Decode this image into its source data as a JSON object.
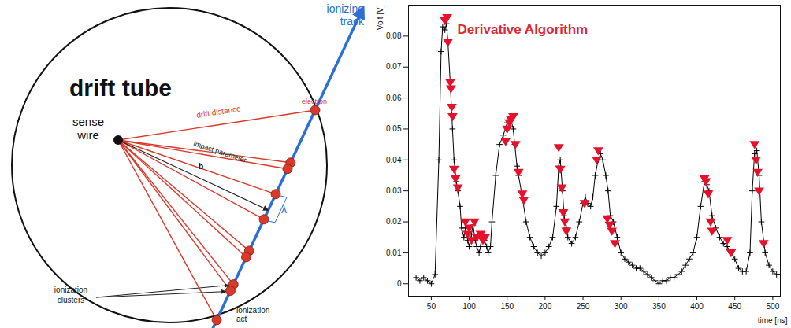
{
  "diagram": {
    "title": "drift tube",
    "labels": {
      "wire": "sense wire",
      "track": "ionizing track",
      "electron": "electron",
      "drift": "drift distance",
      "impact": "impact parameter",
      "impact_symbol": "b",
      "spacing": "λ",
      "clusters": "ionization clusters",
      "act": "ionization act"
    }
  },
  "chart_data": {
    "type": "line",
    "title": "Derivative Algorithm",
    "x_label": "time [ns]",
    "y_label": "Volt [V]",
    "xlim": [
      20,
      510
    ],
    "xticks": [
      50,
      100,
      150,
      200,
      250,
      300,
      350,
      400,
      450,
      500
    ],
    "ylim": [
      -0.004,
      0.09
    ],
    "yticks": [
      0,
      0.01,
      0.02,
      0.03,
      0.04,
      0.05,
      0.06,
      0.07,
      0.08
    ],
    "grid": false,
    "x": [
      30,
      35,
      40,
      45,
      50,
      55,
      60,
      63,
      65,
      68,
      70,
      72,
      75,
      78,
      80,
      83,
      85,
      88,
      90,
      93,
      95,
      98,
      100,
      103,
      105,
      108,
      110,
      113,
      115,
      118,
      120,
      123,
      125,
      128,
      130,
      135,
      140,
      145,
      150,
      155,
      158,
      160,
      163,
      165,
      170,
      175,
      180,
      185,
      190,
      195,
      200,
      205,
      210,
      215,
      218,
      220,
      223,
      225,
      228,
      230,
      235,
      240,
      245,
      250,
      253,
      256,
      260,
      263,
      266,
      270,
      273,
      276,
      280,
      283,
      286,
      290,
      295,
      300,
      305,
      310,
      315,
      320,
      325,
      330,
      335,
      340,
      345,
      350,
      355,
      360,
      365,
      370,
      375,
      380,
      385,
      390,
      395,
      400,
      405,
      410,
      413,
      416,
      420,
      425,
      430,
      435,
      440,
      445,
      450,
      455,
      460,
      465,
      470,
      473,
      476,
      479,
      482,
      485,
      490,
      495,
      500,
      505,
      510
    ],
    "values": [
      0.002,
      0.001,
      0.002,
      0.001,
      0.0,
      0.003,
      0.04,
      0.075,
      0.083,
      0.082,
      0.084,
      0.078,
      0.065,
      0.05,
      0.04,
      0.033,
      0.03,
      0.025,
      0.018,
      0.015,
      0.018,
      0.014,
      0.012,
      0.016,
      0.019,
      0.014,
      0.012,
      0.01,
      0.012,
      0.016,
      0.014,
      0.012,
      0.01,
      0.012,
      0.02,
      0.035,
      0.045,
      0.048,
      0.052,
      0.053,
      0.05,
      0.045,
      0.038,
      0.035,
      0.028,
      0.02,
      0.015,
      0.012,
      0.01,
      0.009,
      0.01,
      0.012,
      0.015,
      0.025,
      0.038,
      0.04,
      0.03,
      0.022,
      0.018,
      0.015,
      0.013,
      0.015,
      0.02,
      0.026,
      0.028,
      0.026,
      0.025,
      0.028,
      0.035,
      0.04,
      0.042,
      0.04,
      0.035,
      0.03,
      0.022,
      0.02,
      0.015,
      0.01,
      0.008,
      0.007,
      0.006,
      0.005,
      0.005,
      0.004,
      0.003,
      0.002,
      0.001,
      0.0,
      0.001,
      0.001,
      0.002,
      0.002,
      0.003,
      0.004,
      0.006,
      0.008,
      0.01,
      0.015,
      0.025,
      0.033,
      0.032,
      0.03,
      0.022,
      0.018,
      0.015,
      0.013,
      0.012,
      0.01,
      0.008,
      0.005,
      0.004,
      0.004,
      0.01,
      0.03,
      0.042,
      0.043,
      0.035,
      0.02,
      0.01,
      0.006,
      0.004,
      0.003,
      0.003
    ],
    "color": "#000000",
    "marker": "plus",
    "line_style": "solid",
    "peaks": {
      "x": [
        68,
        71,
        72,
        75,
        76,
        77,
        78,
        80,
        82,
        85,
        95,
        98,
        100,
        103,
        107,
        110,
        115,
        118,
        121,
        148,
        150,
        153,
        155,
        158,
        161,
        165,
        170,
        172,
        218,
        220,
        222,
        224,
        226,
        228,
        252,
        268,
        270,
        282,
        285,
        288,
        292,
        410,
        412,
        415,
        418,
        420,
        440,
        445,
        476,
        478,
        480,
        482,
        488
      ],
      "values": [
        0.085,
        0.086,
        0.078,
        0.065,
        0.063,
        0.057,
        0.054,
        0.037,
        0.034,
        0.031,
        0.02,
        0.016,
        0.018,
        0.014,
        0.02,
        0.015,
        0.016,
        0.014,
        0.015,
        0.046,
        0.05,
        0.052,
        0.053,
        0.054,
        0.045,
        0.036,
        0.029,
        0.027,
        0.044,
        0.037,
        0.031,
        0.023,
        0.02,
        0.017,
        0.026,
        0.04,
        0.043,
        0.021,
        0.019,
        0.017,
        0.013,
        0.034,
        0.033,
        0.029,
        0.02,
        0.017,
        0.014,
        0.01,
        0.045,
        0.04,
        0.036,
        0.03,
        0.013
      ],
      "color": "#e8102a",
      "marker": "triangle_down"
    }
  }
}
